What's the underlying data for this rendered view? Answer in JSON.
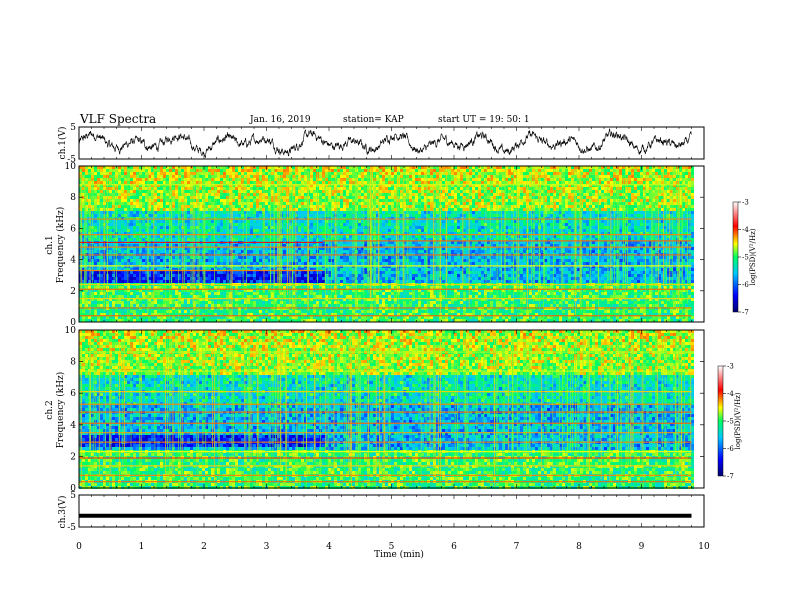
{
  "header": {
    "title": "VLF Spectra",
    "date": "Jan. 16, 2019",
    "station": "station= KAP",
    "start": "start UT =  19: 50: 1"
  },
  "chart_data": [
    {
      "type": "line",
      "panel": "ch1-waveform",
      "ylabel": "ch.1(V)",
      "ylim": [
        -5,
        5
      ],
      "yticks": [
        "5",
        "-5"
      ],
      "xlim": [
        0,
        10
      ],
      "x_data_end": 9.8,
      "description_series": "noisy voltage trace around 0 V"
    },
    {
      "type": "heatmap",
      "panel": "ch1-spectrogram",
      "ylabel": "ch.1",
      "ylabel2": "Frequency (kHz)",
      "ylim": [
        0,
        10
      ],
      "yticks": [
        "0",
        "2",
        "4",
        "6",
        "8",
        "10"
      ],
      "xlim": [
        0,
        10
      ],
      "colorbar": {
        "label": "log(PSD)(V²/Hz)",
        "range": [
          -7,
          -3
        ],
        "ticks": [
          "-3",
          "-4",
          "-5",
          "-6",
          "-7"
        ]
      }
    },
    {
      "type": "heatmap",
      "panel": "ch2-spectrogram",
      "ylabel": "ch.2",
      "ylabel2": "Frequency (kHz)",
      "ylim": [
        0,
        10
      ],
      "yticks": [
        "0",
        "2",
        "4",
        "6",
        "8",
        "10"
      ],
      "xlim": [
        0,
        10
      ],
      "colorbar": {
        "label": "log(PSD)(V²/Hz)",
        "range": [
          -7,
          -3
        ],
        "ticks": [
          "-3",
          "-4",
          "-5",
          "-6",
          "-7"
        ]
      }
    },
    {
      "type": "line",
      "panel": "ch3-waveform",
      "ylabel": "ch.3(V)",
      "ylim": [
        -5,
        5
      ],
      "yticks": [
        "5",
        "-5"
      ],
      "xlim": [
        0,
        10
      ],
      "x_data_end": 9.8,
      "value": -1.5
    }
  ],
  "xaxis": {
    "label": "Time (min)",
    "ticks": [
      "0",
      "1",
      "2",
      "3",
      "4",
      "5",
      "6",
      "7",
      "8",
      "9",
      "10"
    ]
  }
}
